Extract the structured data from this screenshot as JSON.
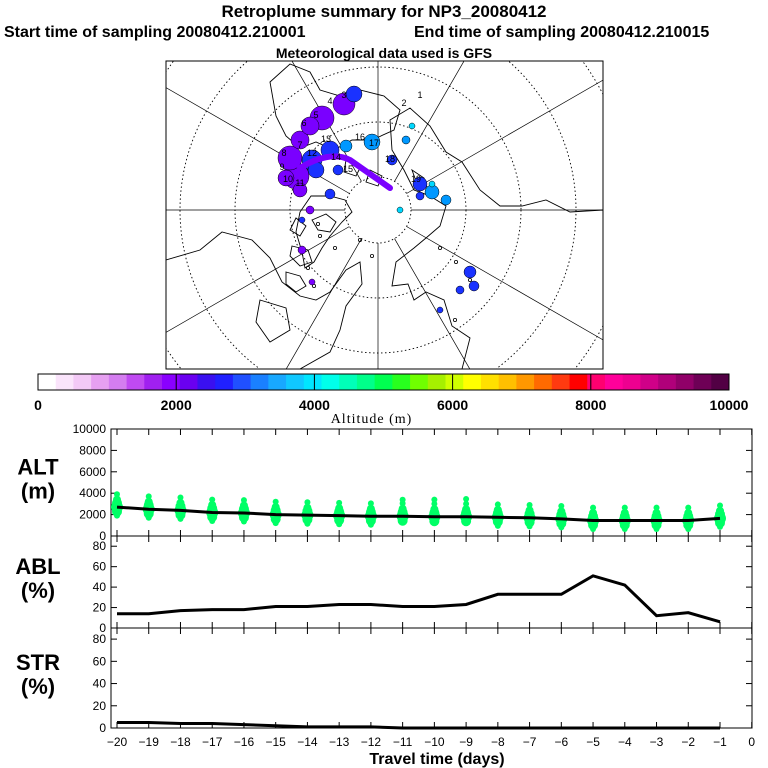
{
  "header": {
    "title": "Retroplume summary for NP3_20080412",
    "start_label": "Start time of sampling 20080412.210001",
    "end_label": "End time of sampling 20080412.210015",
    "met_label": "Meteorological data used is GFS"
  },
  "chart_data": [
    {
      "type": "map",
      "name": "retroplume-map",
      "projection": "north polar stereographic",
      "plume_color_range": [
        "#7a00ff",
        "#1a32ff",
        "#0098ff",
        "#00d8ff"
      ],
      "labels": [
        "1",
        "2",
        "3",
        "4",
        "5",
        "6",
        "7",
        "8",
        "9",
        "10",
        "11",
        "12",
        "13",
        "14",
        "15",
        "16",
        "17",
        "18",
        "19"
      ]
    },
    {
      "type": "colorbar",
      "name": "altitude-colorbar",
      "xlabel": "Altitude (m)",
      "range": [
        0,
        10000
      ],
      "tick_labels": [
        "0",
        "2000",
        "4000",
        "6000",
        "8000",
        "10000"
      ],
      "colors": [
        "#ffffff",
        "#fae4fb",
        "#f3c9f6",
        "#e6a0f1",
        "#d47df0",
        "#c04af2",
        "#a020f0",
        "#8a00ff",
        "#6a00f0",
        "#3a10f0",
        "#2020ff",
        "#2050ff",
        "#1a80ff",
        "#18a8ff",
        "#10c8ff",
        "#00e6ff",
        "#00ffea",
        "#00ffb8",
        "#00ff8a",
        "#00ff50",
        "#28ff1e",
        "#70ff00",
        "#a6f000",
        "#d0ff00",
        "#ffff00",
        "#ffe000",
        "#ffc000",
        "#ff9800",
        "#ff6a00",
        "#ff3a10",
        "#ff0000",
        "#ff0070",
        "#ff009a",
        "#ee0090",
        "#d00088",
        "#b0007a",
        "#900068",
        "#6e0056",
        "#520044"
      ]
    },
    {
      "type": "scatter+line",
      "name": "alt-panel",
      "ylabel": "ALT\n(m)",
      "ylim": [
        0,
        10000
      ],
      "yticks": [
        "0",
        "2000",
        "4000",
        "6000",
        "8000",
        "10000"
      ],
      "x": [
        -20,
        -19,
        -18,
        -17,
        -16,
        -15,
        -14,
        -13,
        -12,
        -11,
        -10,
        -9,
        -8,
        -7,
        -6,
        -5,
        -4,
        -3,
        -2,
        -1
      ],
      "y": [
        2700,
        2500,
        2400,
        2200,
        2150,
        2000,
        1950,
        1900,
        1850,
        1850,
        1800,
        1800,
        1750,
        1700,
        1600,
        1450,
        1450,
        1450,
        1450,
        1650
      ],
      "point_color": "#00ff66"
    },
    {
      "type": "line",
      "name": "abl-panel",
      "ylabel": "ABL\n(%)",
      "ylim": [
        0,
        90
      ],
      "yticks": [
        "0",
        "20",
        "40",
        "60",
        "80"
      ],
      "x": [
        -20,
        -19,
        -18,
        -17,
        -16,
        -15,
        -14,
        -13,
        -12,
        -11,
        -10,
        -9,
        -8,
        -7,
        -6,
        -5,
        -4,
        -3,
        -2,
        -1
      ],
      "y": [
        14,
        14,
        17,
        18,
        18,
        21,
        21,
        23,
        23,
        21,
        21,
        23,
        33,
        33,
        33,
        51,
        42,
        12,
        15,
        6
      ]
    },
    {
      "type": "line",
      "name": "str-panel",
      "ylabel": "STR\n(%)",
      "ylim": [
        0,
        90
      ],
      "yticks": [
        "0",
        "20",
        "40",
        "60",
        "80"
      ],
      "x": [
        -20,
        -19,
        -18,
        -17,
        -16,
        -15,
        -14,
        -13,
        -12,
        -11,
        -10,
        -9,
        -8,
        -7,
        -6,
        -5,
        -4,
        -3,
        -2,
        -1
      ],
      "y": [
        5,
        5,
        4,
        4,
        3,
        2,
        1,
        1,
        1,
        0,
        0,
        0,
        0,
        0,
        0,
        0,
        0,
        0,
        0,
        0
      ]
    },
    {
      "type": "axis",
      "name": "time-axis",
      "xlabel": "Travel time (days)",
      "xticks": [
        "−20",
        "−19",
        "−18",
        "−17",
        "−16",
        "−15",
        "−14",
        "−13",
        "−12",
        "−11",
        "−10",
        "−9",
        "−8",
        "−7",
        "−6",
        "−5",
        "−4",
        "−3",
        "−2",
        "−1",
        "0"
      ]
    }
  ]
}
